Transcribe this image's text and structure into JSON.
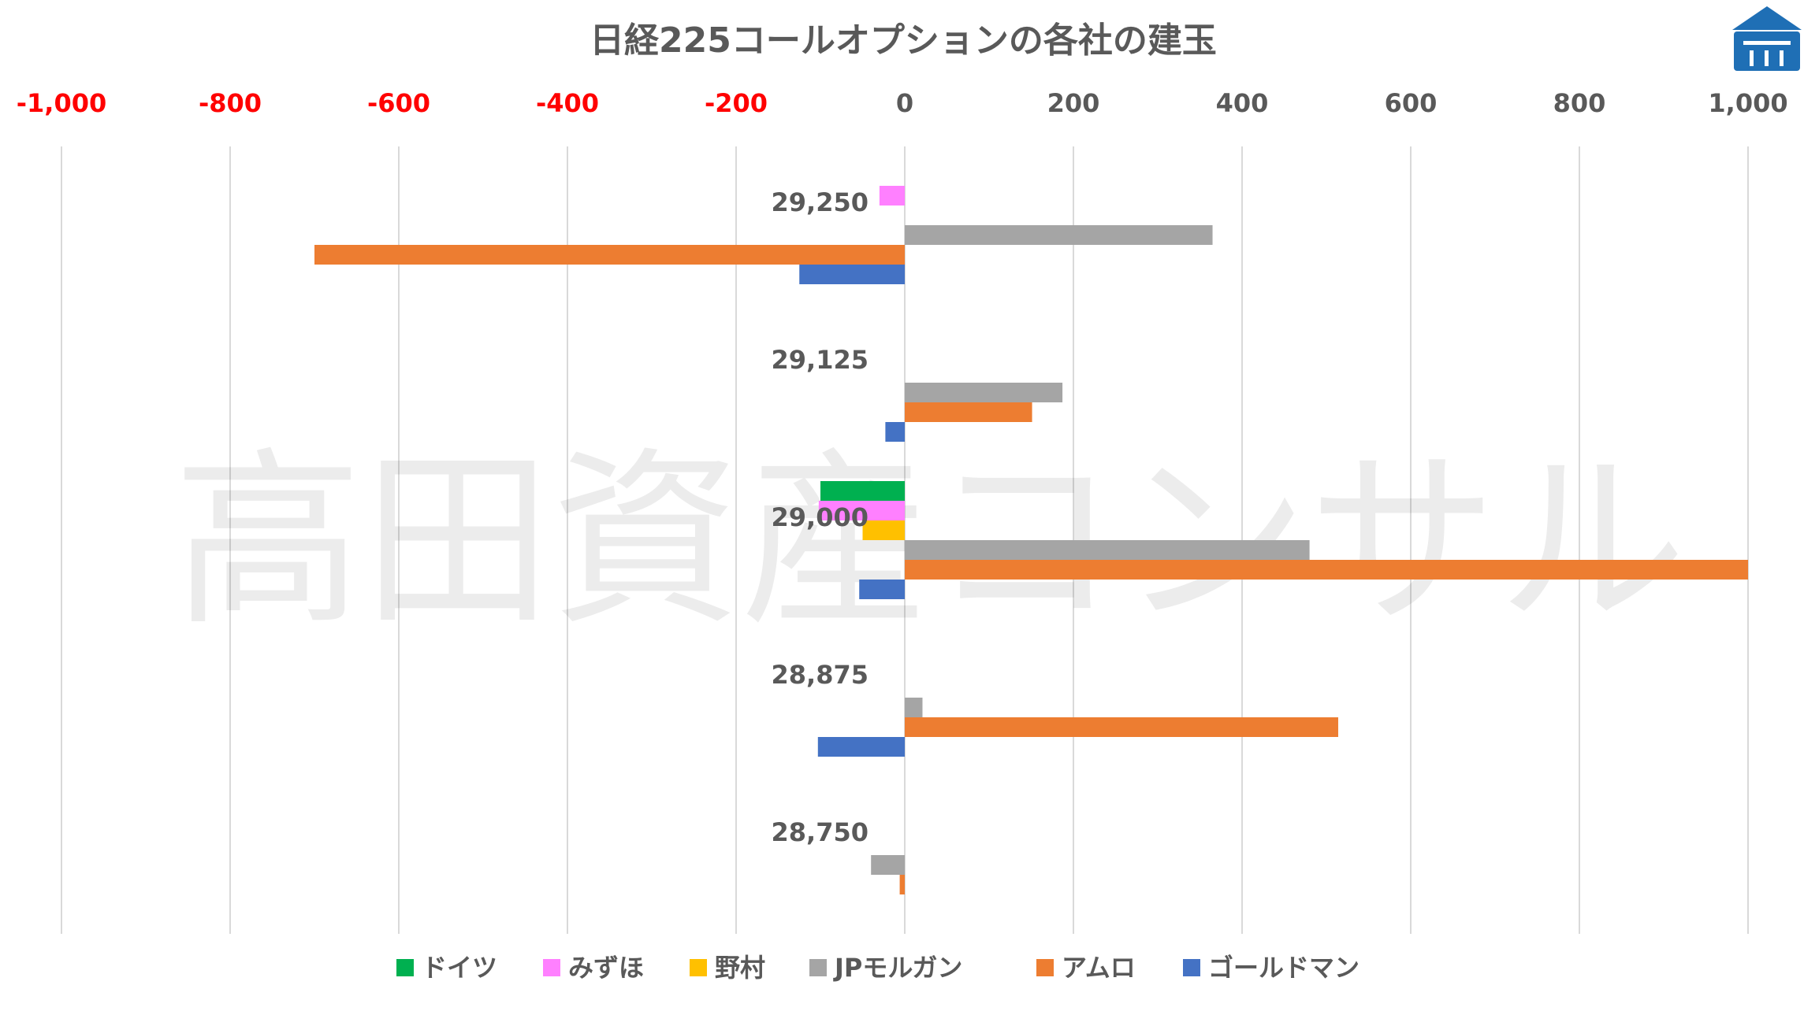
{
  "chart_data": {
    "type": "bar",
    "orientation": "horizontal",
    "title": "日経225コールオプションの各社の建玉",
    "watermark": "高田資産コンサル",
    "xlim": [
      -1000,
      1000
    ],
    "x_ticks": [
      "-1,000",
      "-800",
      "-600",
      "-400",
      "-200",
      "0",
      "200",
      "400",
      "600",
      "800",
      "1,000"
    ],
    "x_tick_values": [
      -1000,
      -800,
      -600,
      -400,
      -200,
      0,
      200,
      400,
      600,
      800,
      1000
    ],
    "negative_tick_color": "#FF0000",
    "positive_tick_color": "#595959",
    "grid": true,
    "legend_position": "bottom",
    "categories": [
      "29,250",
      "29,125",
      "29,000",
      "28,875",
      "28,750"
    ],
    "series": [
      {
        "name": "ドイツ",
        "color": "#00B050",
        "values": [
          0,
          0,
          -100,
          0,
          0
        ]
      },
      {
        "name": "みずほ",
        "color": "#FF80FF",
        "values": [
          -30,
          0,
          -102,
          0,
          0
        ]
      },
      {
        "name": "野村",
        "color": "#FFC000",
        "values": [
          0,
          0,
          -50,
          0,
          0
        ]
      },
      {
        "name": "JPモルガン",
        "color": "#A5A5A5",
        "values": [
          365,
          187,
          480,
          21,
          -40
        ]
      },
      {
        "name": "アムロ",
        "color": "#ED7D31",
        "values": [
          -700,
          151,
          1000,
          514,
          -6
        ]
      },
      {
        "name": "ゴールドマン",
        "color": "#4472C4",
        "values": [
          -125,
          -23,
          -54,
          -103,
          0
        ]
      }
    ]
  },
  "logo": {
    "name": "takada-logo-icon",
    "color": "#1F6FB5"
  }
}
